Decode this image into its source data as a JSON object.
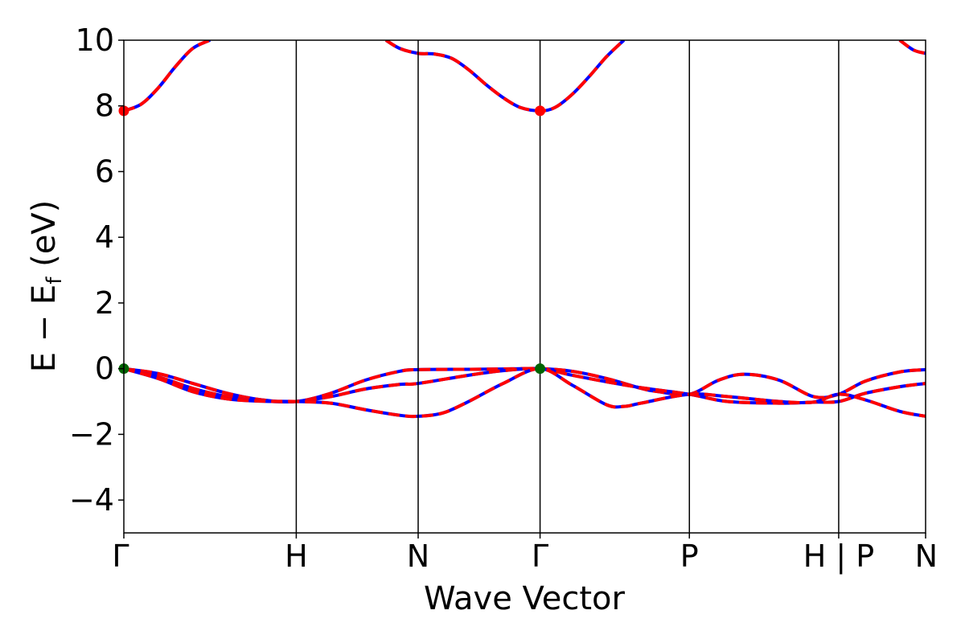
{
  "chart_data": {
    "type": "line",
    "xlabel": "Wave Vector",
    "ylabel": {
      "main": "E − E",
      "sub": "f",
      "unit": " (eV)"
    },
    "ylim": [
      -5,
      10
    ],
    "xlim": [
      0,
      4.65
    ],
    "y_ticks": [
      {
        "value": -4,
        "label": "−4"
      },
      {
        "value": -2,
        "label": "−2"
      },
      {
        "value": 0,
        "label": "0"
      },
      {
        "value": 2,
        "label": "2"
      },
      {
        "value": 4,
        "label": "4"
      },
      {
        "value": 6,
        "label": "6"
      },
      {
        "value": 8,
        "label": "8"
      },
      {
        "value": 10,
        "label": "10"
      }
    ],
    "k_points": [
      {
        "x": 0.0,
        "label": "Γ"
      },
      {
        "x": 1.0,
        "label": "H"
      },
      {
        "x": 1.707,
        "label": "N"
      },
      {
        "x": 2.414,
        "label": "Γ"
      },
      {
        "x": 3.28,
        "label": "P"
      },
      {
        "x": 4.146,
        "label": "H | P"
      },
      {
        "x": 4.65,
        "label": "N"
      }
    ],
    "grid": false,
    "line_colors": {
      "dft": "#0000ff",
      "fit": "#ff0000"
    },
    "marker_colors": {
      "cbm": "#ff0000",
      "vbm": "#006400"
    },
    "bands": [
      {
        "x": [
          0,
          0.1,
          0.2,
          0.3,
          0.4,
          0.5
        ],
        "y": [
          7.85,
          8.05,
          8.55,
          9.2,
          9.75,
          10.0
        ]
      },
      {
        "x": [
          1.52,
          1.6,
          1.707,
          1.8,
          1.9,
          2.0,
          2.1,
          2.2,
          2.3,
          2.414,
          2.5,
          2.6,
          2.7,
          2.8,
          2.9
        ],
        "y": [
          10.0,
          9.75,
          9.6,
          9.58,
          9.45,
          9.1,
          8.65,
          8.25,
          7.95,
          7.85,
          7.95,
          8.35,
          8.9,
          9.5,
          10.0
        ]
      },
      {
        "x": [
          4.5,
          4.58,
          4.65
        ],
        "y": [
          10.0,
          9.7,
          9.6
        ]
      },
      {
        "x": [
          0,
          0.2,
          0.4,
          0.6,
          0.8,
          1.0,
          1.2,
          1.4,
          1.6,
          1.707,
          2.0,
          2.2,
          2.414,
          2.6,
          2.8,
          3.0,
          3.1,
          3.28,
          3.45,
          3.6,
          3.8,
          4.0,
          4.146,
          4.3,
          4.5,
          4.65
        ],
        "y": [
          0.0,
          -0.15,
          -0.45,
          -0.75,
          -0.95,
          -1.0,
          -0.75,
          -0.35,
          -0.08,
          -0.03,
          -0.02,
          -0.01,
          0.0,
          -0.08,
          -0.3,
          -0.6,
          -0.7,
          -0.78,
          -0.35,
          -0.17,
          -0.35,
          -0.85,
          -0.78,
          -0.38,
          -0.1,
          -0.03
        ]
      },
      {
        "x": [
          0,
          0.2,
          0.4,
          0.6,
          0.8,
          1.0,
          1.2,
          1.4,
          1.6,
          1.707,
          2.0,
          2.2,
          2.414,
          2.6,
          2.8,
          3.0,
          3.28,
          3.5,
          3.8,
          4.0,
          4.146,
          4.3,
          4.5,
          4.65
        ],
        "y": [
          0.0,
          -0.25,
          -0.6,
          -0.85,
          -0.98,
          -1.0,
          -0.85,
          -0.62,
          -0.48,
          -0.45,
          -0.2,
          -0.06,
          0.0,
          -0.2,
          -0.4,
          -0.58,
          -0.78,
          -1.0,
          -1.05,
          -1.02,
          -1.0,
          -0.75,
          -0.55,
          -0.45
        ]
      },
      {
        "x": [
          0,
          0.2,
          0.4,
          0.6,
          0.8,
          1.0,
          1.2,
          1.4,
          1.6,
          1.707,
          1.85,
          2.0,
          2.2,
          2.414,
          2.6,
          2.8,
          2.9,
          3.0,
          3.28,
          3.5,
          3.8,
          4.0,
          4.146,
          4.3,
          4.5,
          4.65
        ],
        "y": [
          0.0,
          -0.3,
          -0.7,
          -0.92,
          -0.99,
          -1.0,
          -1.05,
          -1.25,
          -1.42,
          -1.45,
          -1.35,
          -1.0,
          -0.45,
          0.0,
          -0.5,
          -1.1,
          -1.15,
          -1.05,
          -0.78,
          -0.85,
          -1.0,
          -1.02,
          -0.78,
          -0.95,
          -1.3,
          -1.45
        ]
      }
    ],
    "markers": [
      {
        "x": 0.0,
        "y": 7.85,
        "kind": "cbm"
      },
      {
        "x": 2.414,
        "y": 7.85,
        "kind": "cbm"
      },
      {
        "x": 0.0,
        "y": 0.0,
        "kind": "vbm"
      },
      {
        "x": 2.414,
        "y": 0.0,
        "kind": "vbm"
      }
    ]
  }
}
